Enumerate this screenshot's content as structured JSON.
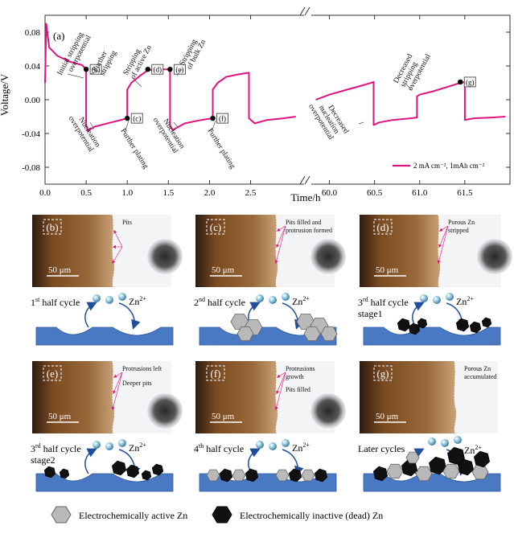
{
  "chart_data": {
    "type": "line",
    "panel_label": "(a)",
    "xlabel": "Time/h",
    "ylabel": "Voltage/V",
    "ylim": [
      -0.1,
      0.1
    ],
    "yticks": [
      -0.08,
      -0.04,
      0.0,
      0.04,
      0.08
    ],
    "x_segments": [
      {
        "xlim": [
          0.0,
          3.15
        ],
        "ticks": [
          0.0,
          0.5,
          1.0,
          1.5,
          2.0,
          2.5
        ],
        "tick_labels": [
          "0.0",
          "0.5",
          "1.0",
          "1.5",
          "2.0",
          "2.5"
        ]
      },
      {
        "xlim": [
          59.8,
          62.0
        ],
        "ticks": [
          60.0,
          60.5,
          61.0,
          61.5
        ],
        "tick_labels": [
          "60.0",
          "60.5",
          "61.0",
          "61.5"
        ]
      }
    ],
    "series": [
      {
        "name": "2 mA cm⁻², 1mAh cm⁻²",
        "color": "#e0137e",
        "segments": [
          [
            [
              0.0,
              0.02
            ],
            [
              0.015,
              0.09
            ],
            [
              0.05,
              0.062
            ],
            [
              0.15,
              0.052
            ],
            [
              0.3,
              0.045
            ],
            [
              0.45,
              0.041
            ],
            [
              0.5,
              0.036
            ],
            [
              0.5,
              -0.03
            ],
            [
              0.52,
              -0.037
            ],
            [
              0.6,
              -0.032
            ],
            [
              0.8,
              -0.027
            ],
            [
              1.0,
              -0.022
            ],
            [
              1.0,
              0.012
            ],
            [
              1.05,
              0.02
            ],
            [
              1.15,
              0.028
            ],
            [
              1.25,
              0.035
            ],
            [
              1.35,
              0.036
            ],
            [
              1.52,
              0.036
            ],
            [
              1.52,
              -0.03
            ],
            [
              1.55,
              -0.036
            ],
            [
              1.7,
              -0.028
            ],
            [
              1.9,
              -0.024
            ],
            [
              2.04,
              -0.022
            ],
            [
              2.04,
              0.012
            ],
            [
              2.1,
              0.02
            ],
            [
              2.2,
              0.027
            ],
            [
              2.35,
              0.03
            ],
            [
              2.48,
              0.032
            ],
            [
              2.48,
              -0.022
            ],
            [
              2.55,
              -0.028
            ],
            [
              2.7,
              -0.024
            ],
            [
              2.9,
              -0.022
            ],
            [
              3.05,
              -0.02
            ]
          ],
          [
            [
              59.85,
              0.0
            ],
            [
              60.0,
              0.006
            ],
            [
              60.2,
              0.012
            ],
            [
              60.4,
              0.018
            ],
            [
              60.49,
              0.021
            ],
            [
              60.49,
              -0.03
            ],
            [
              60.55,
              -0.027
            ],
            [
              60.7,
              -0.024
            ],
            [
              60.9,
              -0.022
            ],
            [
              60.97,
              -0.021
            ],
            [
              60.97,
              0.004
            ],
            [
              61.0,
              0.006
            ],
            [
              61.15,
              0.01
            ],
            [
              61.3,
              0.015
            ],
            [
              61.42,
              0.019
            ],
            [
              61.5,
              0.021
            ],
            [
              61.5,
              -0.024
            ],
            [
              61.6,
              -0.022
            ],
            [
              61.8,
              -0.021
            ],
            [
              61.95,
              -0.02
            ]
          ]
        ]
      }
    ],
    "points": [
      {
        "label": "(b)",
        "x": 0.5,
        "y": 0.036
      },
      {
        "label": "(c)",
        "x": 1.0,
        "y": -0.022
      },
      {
        "label": "(d)",
        "x": 1.25,
        "y": 0.036
      },
      {
        "label": "(e)",
        "x": 1.52,
        "y": 0.036
      },
      {
        "label": "(f)",
        "x": 2.04,
        "y": -0.022
      },
      {
        "label": "(g)",
        "x": 61.45,
        "y": 0.021
      }
    ],
    "annotations": {
      "initial": [
        "Initial stripping",
        "overpotential"
      ],
      "further_stripping": [
        "Further",
        "stripping"
      ],
      "active_zn": [
        "Stripping",
        "of active Zn"
      ],
      "bulk_zn": [
        "Stripping",
        "of bulk Zn"
      ],
      "nucleation1": [
        "Nucleation",
        "overpotential"
      ],
      "further_plating1": "Further plating",
      "nucleation2": [
        "Nucleation",
        "overpotential"
      ],
      "further_plating2": "Further plating",
      "decreased_nucleation": [
        "Decreased",
        "nucleation",
        "overpotential"
      ],
      "decreased_stripping": [
        "Decreased",
        "stripping",
        "overpotential"
      ]
    },
    "legend_position": "bottom-right",
    "grid": false
  },
  "panels": [
    {
      "letter": "(b)",
      "scale": "50 μm",
      "notes": [
        "Pits"
      ],
      "caption": "1",
      "caption_sup": "st",
      "caption_rest": " half cycle",
      "caption2": "",
      "ion": "Zn",
      "ion_sup": "2+"
    },
    {
      "letter": "(c)",
      "scale": "50 μm",
      "notes": [
        "Pits filled and",
        "protrusion formed"
      ],
      "caption": "2",
      "caption_sup": "nd",
      "caption_rest": " half cycle",
      "caption2": "",
      "ion": "Zn",
      "ion_sup": "2+"
    },
    {
      "letter": "(d)",
      "scale": "50 μm",
      "notes": [
        "Porous Zn",
        "stripped"
      ],
      "caption": "3",
      "caption_sup": "rd",
      "caption_rest": " half cycle",
      "caption2": "stage1",
      "ion": "Zn",
      "ion_sup": "2+"
    },
    {
      "letter": "(e)",
      "scale": "50 μm",
      "notes": [
        "Protrusions left",
        "Deeper pits"
      ],
      "caption": "3",
      "caption_sup": "rd",
      "caption_rest": " half cycle",
      "caption2": "stage2",
      "ion": "Zn",
      "ion_sup": "2+"
    },
    {
      "letter": "(f)",
      "scale": "50 μm",
      "notes": [
        "Protrusions",
        "growth",
        "Pits filled"
      ],
      "caption": "4",
      "caption_sup": "th",
      "caption_rest": " half cycle",
      "caption2": "",
      "ion": "Zn",
      "ion_sup": "2+"
    },
    {
      "letter": "(g)",
      "scale": "50 μm",
      "notes": [
        "Porous Zn",
        "accumulated"
      ],
      "caption": "Later cycles",
      "caption_sup": "",
      "caption_rest": "",
      "caption2": "",
      "ion": "Zn",
      "ion_sup": "2+"
    }
  ],
  "legend_bottom": {
    "active": "Electrochemically active Zn",
    "inactive": "Electrochemically inactive (dead) Zn"
  },
  "colors": {
    "curve": "#e0137e",
    "substrate": "#4a79c4",
    "active_zn": "#b9b9b9",
    "dead_zn": "#111111",
    "electrolyte": "#e8f1f8"
  }
}
